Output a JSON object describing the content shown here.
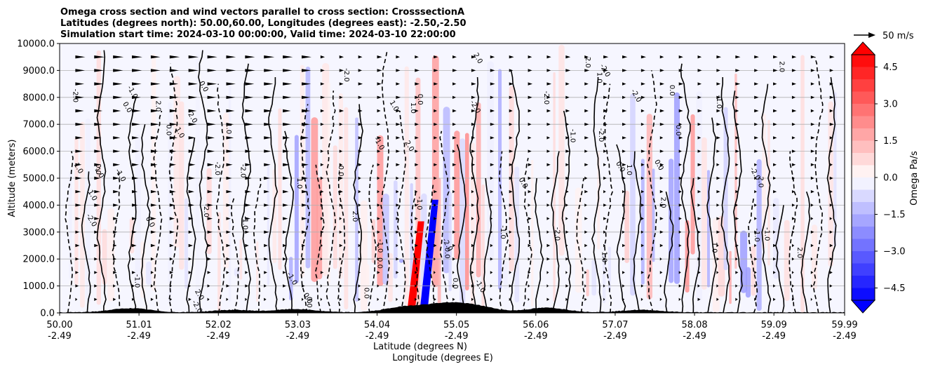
{
  "chart_data": {
    "type": "heatmap",
    "title_lines": [
      "Omega cross section and wind vectors parallel to cross section: CrosssectionA",
      "Latitudes (degrees north): 50.00,60.00, Longitudes (degrees east): -2.50,-2.50",
      "Simulation start time: 2024-03-10 00:00:00, Valid time: 2024-03-10 22:00:00"
    ],
    "ylabel": "Altitude (meters)",
    "xlabel_lat": "Latitude (degrees N)",
    "xlabel_lon": "Longitude (degrees E)",
    "xlim": [
      50.0,
      59.99
    ],
    "ylim": [
      0,
      10000
    ],
    "grid": true,
    "y_ticks": [
      {
        "value": 0,
        "label": "0.0"
      },
      {
        "value": 1000,
        "label": "1000.0"
      },
      {
        "value": 2000,
        "label": "2000.0"
      },
      {
        "value": 3000,
        "label": "3000.0"
      },
      {
        "value": 4000,
        "label": "4000.0"
      },
      {
        "value": 5000,
        "label": "5000.0"
      },
      {
        "value": 6000,
        "label": "6000.0"
      },
      {
        "value": 7000,
        "label": "7000.0"
      },
      {
        "value": 8000,
        "label": "8000.0"
      },
      {
        "value": 9000,
        "label": "9000.0"
      },
      {
        "value": 10000,
        "label": "10000.0"
      }
    ],
    "x_ticks": [
      {
        "value": 50.0,
        "lat": "50.00",
        "lon": "-2.49"
      },
      {
        "value": 51.01,
        "lat": "51.01",
        "lon": "-2.49"
      },
      {
        "value": 52.02,
        "lat": "52.02",
        "lon": "-2.49"
      },
      {
        "value": 53.03,
        "lat": "53.03",
        "lon": "-2.49"
      },
      {
        "value": 54.04,
        "lat": "54.04",
        "lon": "-2.49"
      },
      {
        "value": 55.05,
        "lat": "55.05",
        "lon": "-2.49"
      },
      {
        "value": 56.06,
        "lat": "56.06",
        "lon": "-2.49"
      },
      {
        "value": 57.07,
        "lat": "57.07",
        "lon": "-2.49"
      },
      {
        "value": 58.08,
        "lat": "58.08",
        "lon": "-2.49"
      },
      {
        "value": 59.09,
        "lat": "59.09",
        "lon": "-2.49"
      },
      {
        "value": 59.99,
        "lat": "59.99",
        "lon": "-2.49"
      }
    ],
    "colorbar": {
      "label": "Omega Pa/s",
      "range": [
        -5.0,
        5.0
      ],
      "ticks": [
        {
          "value": 4.5,
          "label": "4.5"
        },
        {
          "value": 3.0,
          "label": "3.0"
        },
        {
          "value": 1.5,
          "label": "1.5"
        },
        {
          "value": 0.0,
          "label": "0.0"
        },
        {
          "value": -1.5,
          "label": "−1.5"
        },
        {
          "value": -3.0,
          "label": "−3.0"
        },
        {
          "value": -4.5,
          "label": "−4.5"
        }
      ]
    },
    "quiver_key": {
      "label": "50 m/s",
      "speed": 50
    },
    "contour_labels": [
      "0.0",
      "1.0",
      "2.0",
      "-1.0",
      "-2.0"
    ],
    "features": {
      "ascent_band": {
        "lat": 54.7,
        "alt_range": [
          0,
          4200
        ],
        "omega": -5.0
      },
      "descent_band": {
        "lat": 54.5,
        "alt_range": [
          0,
          3400
        ],
        "omega": 5.0
      },
      "terrain_peaks": [
        {
          "lat": 50.9,
          "height": 150
        },
        {
          "lat": 52.2,
          "height": 90
        },
        {
          "lat": 53.0,
          "height": 120
        },
        {
          "lat": 54.4,
          "height": 200
        },
        {
          "lat": 54.9,
          "height": 280
        },
        {
          "lat": 55.3,
          "height": 210
        },
        {
          "lat": 56.2,
          "height": 170
        },
        {
          "lat": 57.4,
          "height": 90
        }
      ]
    }
  }
}
